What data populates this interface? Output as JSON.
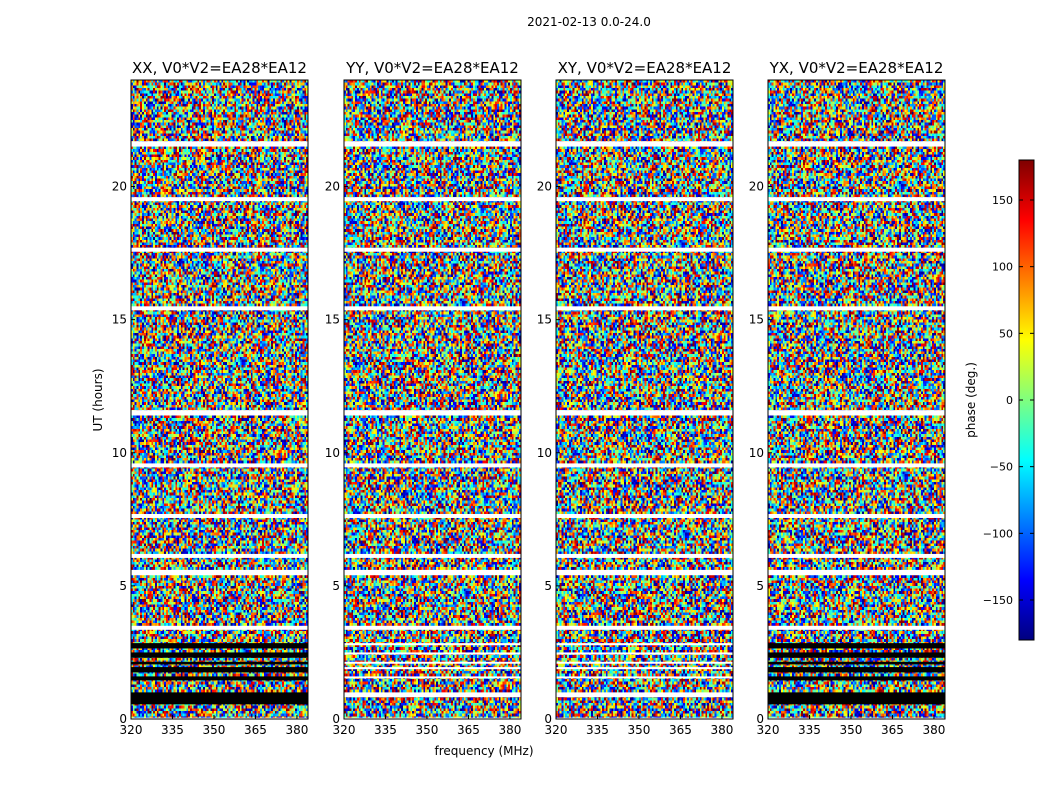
{
  "figure": {
    "suptitle": "2021-02-13 0.0-24.0"
  },
  "chart_data": {
    "type": "heatmap",
    "title": "2021-02-13 0.0-24.0",
    "xlabel": "frequency (MHz)",
    "ylabel": "UT (hours)",
    "xlim": [
      320,
      384
    ],
    "ylim": [
      0,
      24
    ],
    "xticks": [
      "320",
      "335",
      "350",
      "365",
      "380"
    ],
    "yticks": [
      "0",
      "5",
      "10",
      "15",
      "20"
    ],
    "panels": [
      {
        "title": "XX, V0*V2=EA28*EA12",
        "pol": "XX"
      },
      {
        "title": "YY, V0*V2=EA28*EA12",
        "pol": "YY"
      },
      {
        "title": "XY, V0*V2=EA28*EA12",
        "pol": "XY"
      },
      {
        "title": "YX, V0*V2=EA28*EA12",
        "pol": "YX"
      }
    ],
    "colorbar": {
      "label": "phase (deg.)",
      "range": [
        -180,
        180
      ],
      "ticks": [
        "−150",
        "−100",
        "−50",
        "0",
        "50",
        "100",
        "150"
      ],
      "tick_values": [
        -150,
        -100,
        -50,
        0,
        50,
        100,
        150
      ],
      "colormap": "jet"
    },
    "flagged_ut_bands": [
      [
        0.55,
        1.0
      ],
      [
        1.45,
        1.6
      ],
      [
        1.75,
        1.95
      ],
      [
        2.05,
        2.15
      ],
      [
        2.3,
        2.5
      ],
      [
        2.65,
        2.85
      ]
    ],
    "blank_ut_bands": [
      [
        0.0,
        0.05
      ],
      [
        3.35,
        3.5
      ],
      [
        5.4,
        5.6
      ],
      [
        6.05,
        6.2
      ],
      [
        7.55,
        7.7
      ],
      [
        9.45,
        9.6
      ],
      [
        11.4,
        11.6
      ],
      [
        15.35,
        15.5
      ],
      [
        17.55,
        17.7
      ],
      [
        19.45,
        19.6
      ],
      [
        21.5,
        21.7
      ]
    ]
  }
}
